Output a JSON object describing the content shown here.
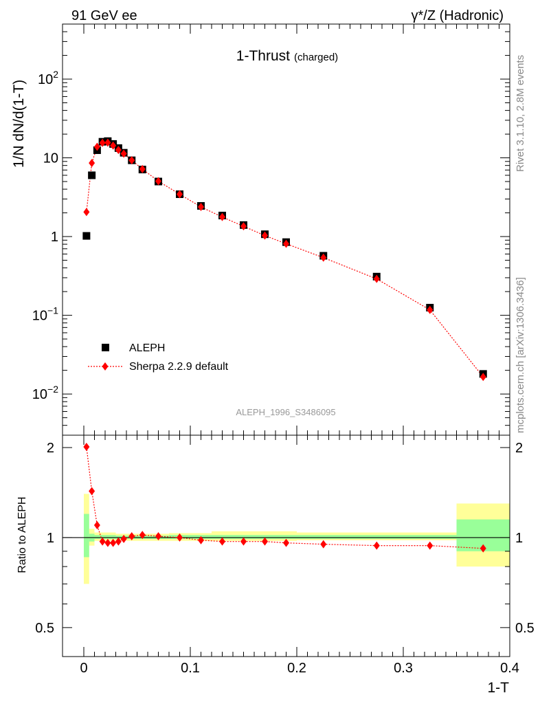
{
  "chart_data": {
    "type": "scatter",
    "header_left": "91 GeV ee",
    "header_right": "γ*/Z (Hadronic)",
    "title": "1-Thrust",
    "title_sub": "(charged)",
    "ylabel": "1/N dN/d(1-T)",
    "xlabel": "1-T",
    "ratio_ylabel": "Ratio to ALEPH",
    "analysis_label": "ALEPH_1996_S3486095",
    "side_label_top": "Rivet 3.1.10,  2.8M events",
    "side_label_bottom": "mcplots.cern.ch [arXiv:1306.3436]",
    "y_scale": "log",
    "ylim": [
      0.003,
      500
    ],
    "xlim": [
      -0.02,
      0.4
    ],
    "ratio_ylim": [
      0.4,
      2.2
    ],
    "ratio_y_scale": "log",
    "main_yticks": [
      {
        "v": 0.01,
        "base": "10",
        "exp": "−2"
      },
      {
        "v": 0.1,
        "base": "10",
        "exp": "−1"
      },
      {
        "v": 1,
        "base": "1",
        "exp": ""
      },
      {
        "v": 10,
        "base": "10",
        "exp": ""
      },
      {
        "v": 100,
        "base": "10",
        "exp": "2"
      }
    ],
    "x_ticks": [
      {
        "v": 0,
        "label": "0"
      },
      {
        "v": 0.1,
        "label": "0.1"
      },
      {
        "v": 0.2,
        "label": "0.2"
      },
      {
        "v": 0.3,
        "label": "0.3"
      },
      {
        "v": 0.4,
        "label": "0.4"
      }
    ],
    "ratio_yticks": [
      {
        "v": 0.5,
        "label": "0.5"
      },
      {
        "v": 1,
        "label": "1"
      },
      {
        "v": 2,
        "label": "2"
      }
    ],
    "legend": [
      {
        "name": "ALEPH",
        "marker": "square",
        "color": "#000000"
      },
      {
        "name": "Sherpa 2.2.9 default",
        "marker": "diamond",
        "color": "#ff0000"
      }
    ],
    "legend_position": "bottom-left",
    "series": [
      {
        "name": "ALEPH",
        "x": [
          0.0025,
          0.0075,
          0.0125,
          0.0175,
          0.0225,
          0.0275,
          0.0325,
          0.0375,
          0.045,
          0.055,
          0.07,
          0.09,
          0.11,
          0.13,
          0.15,
          0.17,
          0.19,
          0.225,
          0.275,
          0.325,
          0.375
        ],
        "values": [
          1.02,
          6.0,
          12.5,
          16.0,
          16.3,
          15.0,
          13.3,
          11.6,
          9.3,
          7.1,
          5.0,
          3.45,
          2.45,
          1.85,
          1.4,
          1.07,
          0.85,
          0.57,
          0.31,
          0.125,
          0.018
        ]
      },
      {
        "name": "Sherpa 2.2.9 default",
        "x": [
          0.0025,
          0.0075,
          0.0125,
          0.0175,
          0.0225,
          0.0275,
          0.0325,
          0.0375,
          0.045,
          0.055,
          0.07,
          0.09,
          0.11,
          0.13,
          0.15,
          0.17,
          0.19,
          0.225,
          0.275,
          0.325,
          0.375
        ],
        "values": [
          2.05,
          8.6,
          13.8,
          15.5,
          15.6,
          14.3,
          12.6,
          11.3,
          9.3,
          7.2,
          5.05,
          3.45,
          2.38,
          1.77,
          1.35,
          1.03,
          0.81,
          0.54,
          0.29,
          0.117,
          0.0165
        ]
      }
    ],
    "ratio_values": [
      2.01,
      1.43,
      1.1,
      0.97,
      0.96,
      0.96,
      0.97,
      0.99,
      1.01,
      1.02,
      1.01,
      1.0,
      0.98,
      0.97,
      0.97,
      0.97,
      0.96,
      0.95,
      0.94,
      0.94,
      0.92
    ],
    "ratio_bands": [
      {
        "x0": 0.0,
        "x1": 0.005,
        "y_lo": 0.7,
        "y_hi": 1.4,
        "g_lo": 0.86,
        "g_hi": 1.2
      },
      {
        "x0": 0.005,
        "x1": 0.01,
        "y_lo": 0.94,
        "y_hi": 1.07,
        "g_lo": 0.97,
        "g_hi": 1.03
      },
      {
        "x0": 0.01,
        "x1": 0.03,
        "y_lo": 0.975,
        "y_hi": 1.04,
        "g_lo": 0.99,
        "g_hi": 1.02
      },
      {
        "x0": 0.03,
        "x1": 0.04,
        "y_lo": 0.98,
        "y_hi": 1.03,
        "g_lo": 0.99,
        "g_hi": 1.015
      },
      {
        "x0": 0.04,
        "x1": 0.08,
        "y_lo": 0.975,
        "y_hi": 1.03,
        "g_lo": 0.99,
        "g_hi": 1.015
      },
      {
        "x0": 0.08,
        "x1": 0.12,
        "y_lo": 0.975,
        "y_hi": 1.035,
        "g_lo": 0.99,
        "g_hi": 1.02
      },
      {
        "x0": 0.12,
        "x1": 0.2,
        "y_lo": 0.975,
        "y_hi": 1.05,
        "g_lo": 0.99,
        "g_hi": 1.02
      },
      {
        "x0": 0.2,
        "x1": 0.35,
        "y_lo": 0.98,
        "y_hi": 1.04,
        "g_lo": 0.99,
        "g_hi": 1.02
      },
      {
        "x0": 0.35,
        "x1": 0.4,
        "y_lo": 0.8,
        "y_hi": 1.3,
        "g_lo": 0.9,
        "g_hi": 1.15
      }
    ],
    "grid": false,
    "colors": {
      "data": "#000000",
      "mc": "#ff0000",
      "band_yellow": "#ffff99",
      "band_green": "#99ff99"
    }
  }
}
